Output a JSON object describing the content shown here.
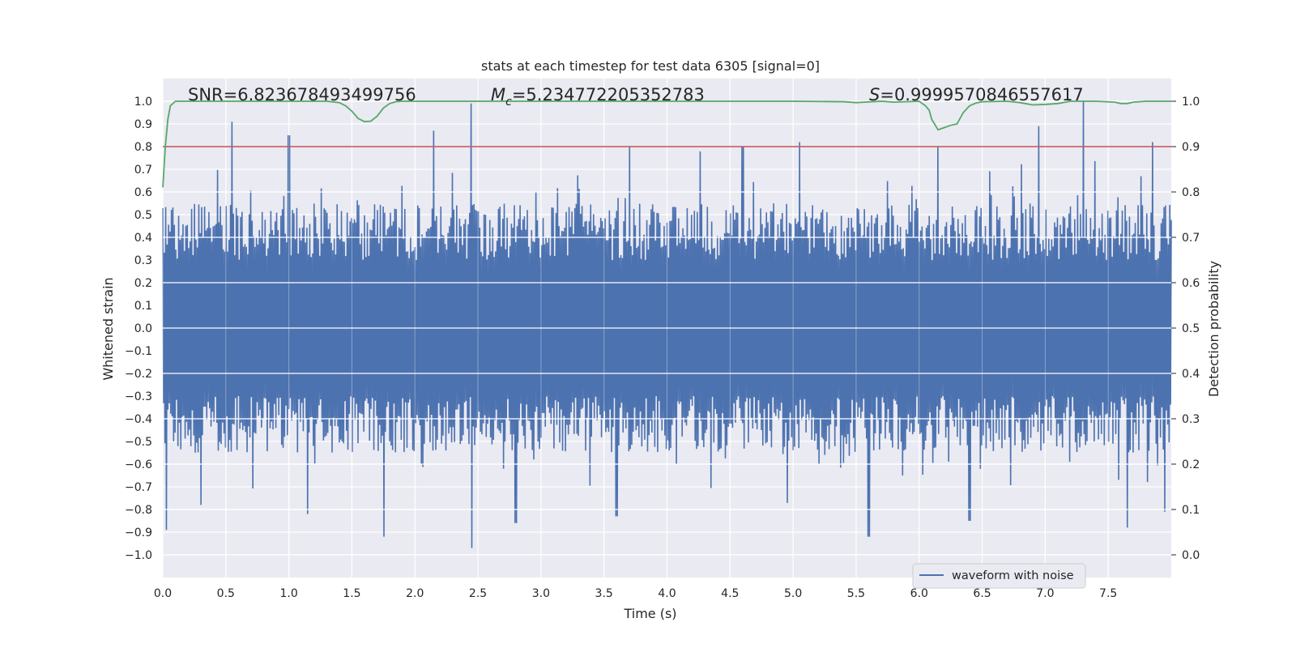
{
  "chart_data": {
    "type": "line",
    "title": "stats at each timestep for test data 6305 [signal=0]",
    "xlabel": "Time (s)",
    "ylabel_left": "Whitened strain",
    "ylabel_right": "Detection probability",
    "xlim": [
      0.0,
      8.0
    ],
    "ylim_left": [
      -1.1,
      1.1
    ],
    "ylim_right": [
      -0.05,
      1.05
    ],
    "x_ticks": [
      "0.0",
      "0.5",
      "1.0",
      "1.5",
      "2.0",
      "2.5",
      "3.0",
      "3.5",
      "4.0",
      "4.5",
      "5.0",
      "5.5",
      "6.0",
      "6.5",
      "7.0",
      "7.5"
    ],
    "y_ticks_left": [
      "1.0",
      "0.9",
      "0.8",
      "0.7",
      "0.6",
      "0.5",
      "0.4",
      "0.3",
      "0.2",
      "0.1",
      "0.0",
      "−0.1",
      "−0.2",
      "−0.3",
      "−0.4",
      "−0.5",
      "−0.6",
      "−0.7",
      "−0.8",
      "−0.9",
      "−1.0"
    ],
    "y_ticks_right": [
      "1.0",
      "0.9",
      "0.8",
      "0.7",
      "0.6",
      "0.5",
      "0.4",
      "0.3",
      "0.2",
      "0.1",
      "0.0"
    ],
    "grid": true,
    "annotations": {
      "snr": "SNR=6.823678493499756",
      "mc_prefix": "M",
      "mc_sub": "c",
      "mc_value": "=5.234772205352783",
      "s_prefix": "S",
      "s_value": "=0.9999570846557617"
    },
    "threshold": {
      "axis": "right",
      "value": 0.9,
      "color": "#c44e52"
    },
    "series": [
      {
        "name": "waveform with noise",
        "axis": "left",
        "color": "#4c72b0",
        "envelope_peaks_positive": [
          {
            "x": 0.55,
            "y": 0.91
          },
          {
            "x": 1.0,
            "y": 0.85
          },
          {
            "x": 2.15,
            "y": 0.87
          },
          {
            "x": 2.45,
            "y": 0.99
          },
          {
            "x": 3.7,
            "y": 0.8
          },
          {
            "x": 4.6,
            "y": 0.8
          },
          {
            "x": 5.05,
            "y": 0.82
          },
          {
            "x": 6.15,
            "y": 0.8
          },
          {
            "x": 6.95,
            "y": 0.89
          },
          {
            "x": 7.3,
            "y": 1.0
          },
          {
            "x": 7.85,
            "y": 0.82
          }
        ],
        "envelope_peaks_negative": [
          {
            "x": 0.03,
            "y": -0.89
          },
          {
            "x": 0.3,
            "y": -0.78
          },
          {
            "x": 1.15,
            "y": -0.82
          },
          {
            "x": 1.75,
            "y": -0.92
          },
          {
            "x": 2.45,
            "y": -0.97
          },
          {
            "x": 2.8,
            "y": -0.86
          },
          {
            "x": 3.6,
            "y": -0.83
          },
          {
            "x": 5.6,
            "y": -0.92
          },
          {
            "x": 6.4,
            "y": -0.85
          },
          {
            "x": 7.65,
            "y": -0.88
          },
          {
            "x": 7.95,
            "y": -0.81
          }
        ]
      },
      {
        "name": "detection probability",
        "axis": "right",
        "color": "#55a868",
        "x": [
          0.0,
          0.02,
          0.04,
          0.06,
          0.1,
          0.15,
          0.3,
          0.6,
          1.0,
          1.3,
          1.4,
          1.45,
          1.5,
          1.55,
          1.6,
          1.65,
          1.7,
          1.75,
          1.8,
          1.85,
          1.9,
          2.0,
          2.5,
          3.0,
          4.0,
          5.0,
          5.4,
          5.5,
          5.7,
          5.8,
          6.0,
          6.05,
          6.08,
          6.1,
          6.15,
          6.2,
          6.25,
          6.3,
          6.35,
          6.4,
          6.45,
          6.5,
          6.7,
          6.8,
          6.9,
          7.0,
          7.1,
          7.2,
          7.4,
          7.55,
          7.6,
          7.65,
          7.7,
          7.8,
          8.0
        ],
        "values": [
          0.81,
          0.9,
          0.96,
          0.99,
          1.0,
          1.0,
          1.0,
          1.0,
          1.0,
          1.0,
          0.997,
          0.99,
          0.978,
          0.962,
          0.955,
          0.956,
          0.967,
          0.985,
          0.995,
          0.999,
          1.0,
          1.0,
          1.0,
          1.0,
          1.0,
          1.0,
          0.999,
          0.997,
          1.0,
          0.998,
          1.0,
          0.99,
          0.98,
          0.96,
          0.937,
          0.942,
          0.947,
          0.95,
          0.975,
          0.99,
          0.996,
          0.999,
          1.0,
          0.997,
          0.992,
          0.993,
          0.995,
          1.0,
          1.0,
          0.998,
          0.995,
          0.995,
          0.998,
          1.0,
          1.0
        ]
      }
    ],
    "legend": {
      "entries": [
        "waveform with noise"
      ],
      "placement": "lower-right"
    }
  }
}
